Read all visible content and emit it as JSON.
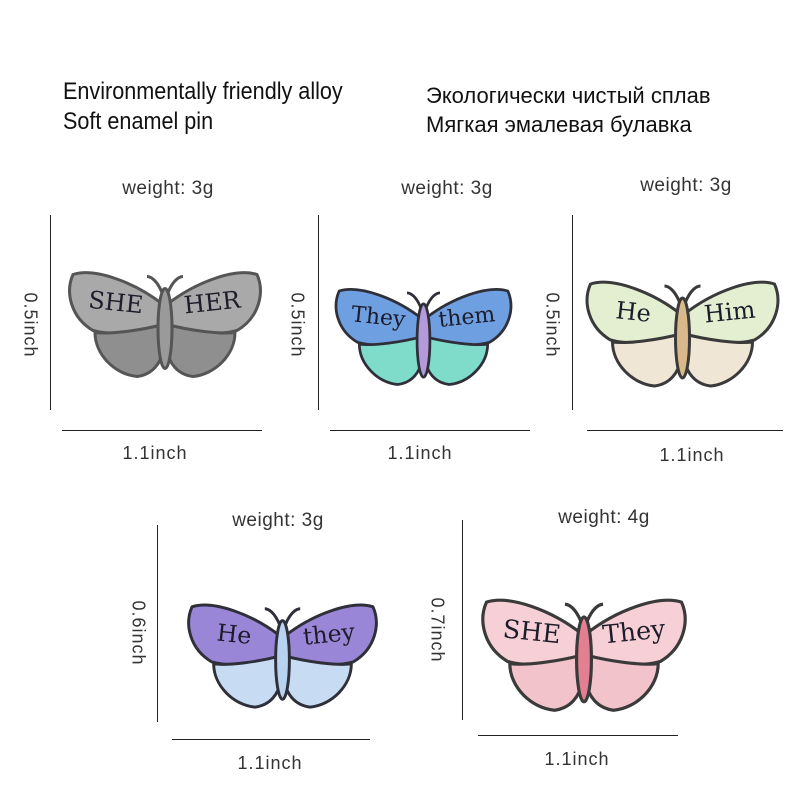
{
  "header": {
    "en_line1": "Environmentally friendly alloy",
    "en_line2": "Soft enamel pin",
    "ru_line1": "Экологически чистый сплав",
    "ru_line2": "Мягкая эмалевая булавка"
  },
  "pins": [
    {
      "weight": "weight: 3g",
      "height": "0.5inch",
      "width": "1.1inch",
      "left_word": "SHE",
      "right_word": "HER",
      "colors": {
        "top": "#a9a9a9",
        "bottom": "#8f8f8f",
        "body": "#9a9a9a",
        "outline": "#555555"
      }
    },
    {
      "weight": "weight: 3g",
      "height": "0.5inch",
      "width": "1.1inch",
      "left_word": "They",
      "right_word": "them",
      "colors": {
        "top": "#6e9fe0",
        "bottom": "#7fdccb",
        "body": "#b49ad8",
        "outline": "#2f2f3a"
      }
    },
    {
      "weight": "weight: 3g",
      "height": "0.5inch",
      "width": "1.1inch",
      "left_word": "He",
      "right_word": "Him",
      "colors": {
        "top": "#e4efd2",
        "bottom": "#efe6d6",
        "body": "#d9b98a",
        "outline": "#3a3a3a"
      }
    },
    {
      "weight": "weight: 3g",
      "height": "0.6inch",
      "width": "1.1inch",
      "left_word": "He",
      "right_word": "they",
      "colors": {
        "top": "#9a86d6",
        "bottom": "#c7dcf3",
        "body": "#b7d3ef",
        "outline": "#2f2f3a"
      }
    },
    {
      "weight": "weight: 4g",
      "height": "0.7inch",
      "width": "1.1inch",
      "left_word": "SHE",
      "right_word": "They",
      "colors": {
        "top": "#f6d0d6",
        "bottom": "#f3c3cb",
        "body": "#e27f90",
        "outline": "#3a3a3a"
      }
    }
  ]
}
